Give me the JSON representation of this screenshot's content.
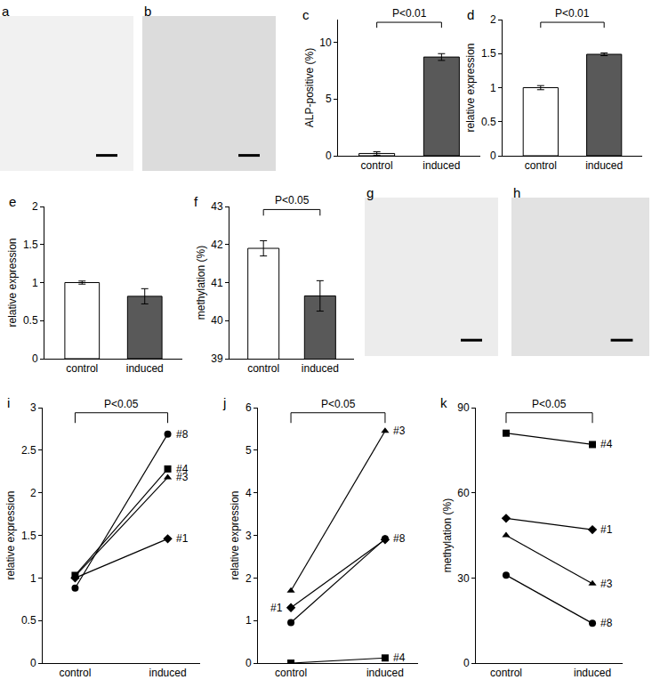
{
  "chart_data": [
    {
      "type": "image",
      "title": "a"
    },
    {
      "type": "image",
      "title": "b"
    },
    {
      "type": "bar",
      "title": "c",
      "ylabel": "ALP-positive (%)",
      "categories": [
        "control",
        "induced"
      ],
      "values": [
        0.2,
        8.7
      ],
      "errors": [
        0.15,
        0.3
      ],
      "colors": [
        "#ffffff",
        "#595959"
      ],
      "ylim": [
        0,
        12
      ],
      "yticks": [
        0,
        5,
        10
      ],
      "annotations": [
        {
          "text": "P<0.01",
          "between": [
            "control",
            "induced"
          ]
        }
      ]
    },
    {
      "type": "bar",
      "title": "d",
      "ylabel": "relative expression",
      "categories": [
        "control",
        "induced"
      ],
      "values": [
        1.0,
        1.49
      ],
      "errors": [
        0.03,
        0.02
      ],
      "colors": [
        "#ffffff",
        "#595959"
      ],
      "ylim": [
        0,
        2
      ],
      "yticks": [
        0,
        0.5,
        1,
        1.5,
        2
      ],
      "annotations": [
        {
          "text": "P<0.01",
          "between": [
            "control",
            "induced"
          ]
        }
      ]
    },
    {
      "type": "bar",
      "title": "e",
      "ylabel": "relative expression",
      "categories": [
        "control",
        "induced"
      ],
      "values": [
        1.0,
        0.82
      ],
      "errors": [
        0.02,
        0.1
      ],
      "colors": [
        "#ffffff",
        "#595959"
      ],
      "ylim": [
        0,
        2
      ],
      "yticks": [
        0,
        0.5,
        1,
        1.5,
        2
      ]
    },
    {
      "type": "bar",
      "title": "f",
      "ylabel": "methylation (%)",
      "categories": [
        "control",
        "induced"
      ],
      "values": [
        41.9,
        40.65
      ],
      "errors": [
        0.2,
        0.4
      ],
      "colors": [
        "#ffffff",
        "#595959"
      ],
      "ylim": [
        39,
        43
      ],
      "yticks": [
        39,
        40,
        41,
        42,
        43
      ],
      "annotations": [
        {
          "text": "P<0.05",
          "between": [
            "control",
            "induced"
          ]
        }
      ]
    },
    {
      "type": "image",
      "title": "g"
    },
    {
      "type": "image",
      "title": "h"
    },
    {
      "type": "line",
      "title": "i",
      "ylabel": "relative expression",
      "categories": [
        "control",
        "induced"
      ],
      "ylim": [
        0,
        3
      ],
      "yticks": [
        0,
        0.5,
        1,
        1.5,
        2,
        2.5,
        3
      ],
      "series": [
        {
          "name": "#8",
          "color": "#000000",
          "marker": "circle",
          "values": [
            0.88,
            2.69
          ]
        },
        {
          "name": "#4",
          "color": "#000000",
          "marker": "square",
          "values": [
            1.03,
            2.28
          ]
        },
        {
          "name": "#3",
          "color": "#000000",
          "marker": "triangle",
          "values": [
            1.02,
            2.18
          ]
        },
        {
          "name": "#1",
          "color": "#000000",
          "marker": "diamond",
          "values": [
            1.0,
            1.46
          ]
        }
      ],
      "annotations": [
        {
          "text": "P<0.05",
          "between": [
            "control",
            "induced"
          ]
        }
      ]
    },
    {
      "type": "line",
      "title": "j",
      "ylabel": "relative expression",
      "categories": [
        "control",
        "induced"
      ],
      "ylim": [
        0,
        6
      ],
      "yticks": [
        0,
        1,
        2,
        3,
        4,
        5,
        6
      ],
      "series": [
        {
          "name": "#3",
          "color": "#000000",
          "marker": "triangle",
          "values": [
            1.7,
            5.45
          ]
        },
        {
          "name": "#8",
          "color": "#000000",
          "marker": "circle",
          "values": [
            0.95,
            2.92
          ]
        },
        {
          "name": "#1",
          "color": "#000000",
          "marker": "diamond",
          "values": [
            1.3,
            2.9
          ]
        },
        {
          "name": "#4",
          "color": "#000000",
          "marker": "square",
          "values": [
            0.0,
            0.12
          ]
        }
      ],
      "annotations": [
        {
          "text": "P<0.05",
          "between": [
            "control",
            "induced"
          ]
        }
      ]
    },
    {
      "type": "line",
      "title": "k",
      "ylabel": "methylation (%)",
      "categories": [
        "control",
        "induced"
      ],
      "ylim": [
        0,
        90
      ],
      "yticks": [
        0,
        30,
        60,
        90
      ],
      "series": [
        {
          "name": "#4",
          "color": "#000000",
          "marker": "square",
          "values": [
            81,
            77
          ]
        },
        {
          "name": "#1",
          "color": "#000000",
          "marker": "diamond",
          "values": [
            51,
            47
          ]
        },
        {
          "name": "#3",
          "color": "#000000",
          "marker": "triangle",
          "values": [
            45,
            28
          ]
        },
        {
          "name": "#8",
          "color": "#000000",
          "marker": "circle",
          "values": [
            31,
            14
          ]
        }
      ],
      "annotations": [
        {
          "text": "P<0.05",
          "between": [
            "control",
            "induced"
          ]
        }
      ]
    }
  ]
}
